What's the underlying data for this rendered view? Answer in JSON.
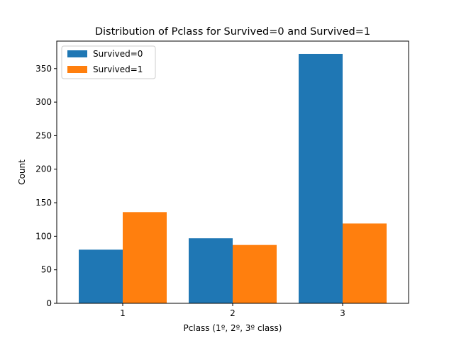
{
  "chart_data": {
    "type": "bar",
    "title": "Distribution of Pclass for Survived=0 and Survived=1",
    "xlabel": "Pclass (1º, 2º, 3º class)",
    "ylabel": "Count",
    "categories": [
      "1",
      "2",
      "3"
    ],
    "series": [
      {
        "name": "Survived=0",
        "values": [
          80,
          97,
          372
        ],
        "color": "#1f77b4"
      },
      {
        "name": "Survived=1",
        "values": [
          136,
          87,
          119
        ],
        "color": "#ff7f0e"
      }
    ],
    "ylim": [
      0,
      391
    ],
    "yticks": [
      0,
      50,
      100,
      150,
      200,
      250,
      300,
      350
    ],
    "grid": false,
    "legend_position": "top-left"
  }
}
